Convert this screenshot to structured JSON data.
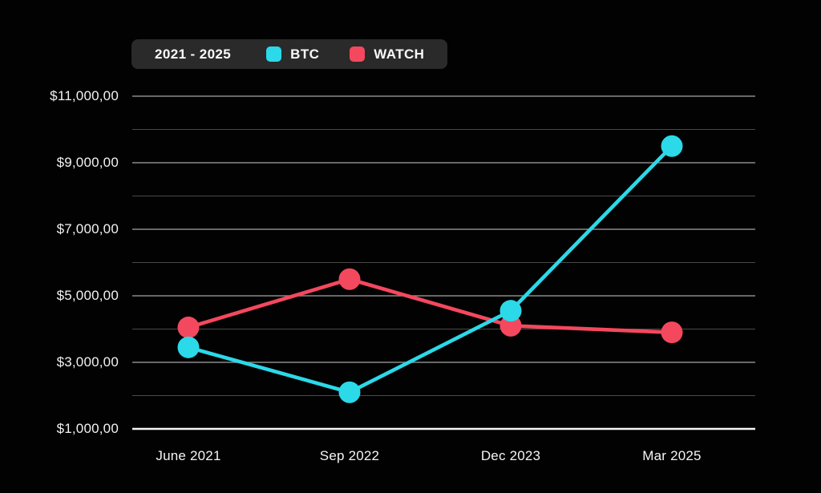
{
  "page": {
    "background": "#020202"
  },
  "legend": {
    "title": "2021 - 2025",
    "background": "#2A2A2A",
    "text_color": "#FAFAFA",
    "items": [
      {
        "label": "BTC",
        "color": "#2BD9E9"
      },
      {
        "label": "WATCH",
        "color": "#F4485E"
      }
    ]
  },
  "chart_data": {
    "type": "line",
    "title": "",
    "xlabel": "",
    "ylabel": "",
    "categories": [
      "June 2021",
      "Sep 2022",
      "Dec 2023",
      "Mar 2025"
    ],
    "series": [
      {
        "name": "BTC",
        "color": "#2BD9E9",
        "values": [
          3450,
          2100,
          4550,
          9500
        ]
      },
      {
        "name": "WATCH",
        "color": "#F4485E",
        "values": [
          4050,
          5500,
          4100,
          3900
        ]
      }
    ],
    "ylim": [
      1000,
      11000
    ],
    "ytick_step": 1000,
    "labeled_tick_values": [
      11000,
      9000,
      7000,
      5000,
      3000,
      1000
    ],
    "ytick_labels_top_down": [
      "$11,000,00",
      "$9,000,00",
      "$7,000,00",
      "$5,000,00",
      "$3,000,00",
      "$1,000,00"
    ],
    "grid": "horizontal lines every 1000; labeled lines brighter; bottom baseline solid white",
    "legend_position": "top-left",
    "point_style": "filled circle markers"
  },
  "axis_style": {
    "label_color": "#F2F2F2",
    "grid_major_color": "#8A8A8A",
    "grid_minor_color": "#4A4A4A",
    "baseline_color": "#F5F5F5"
  }
}
